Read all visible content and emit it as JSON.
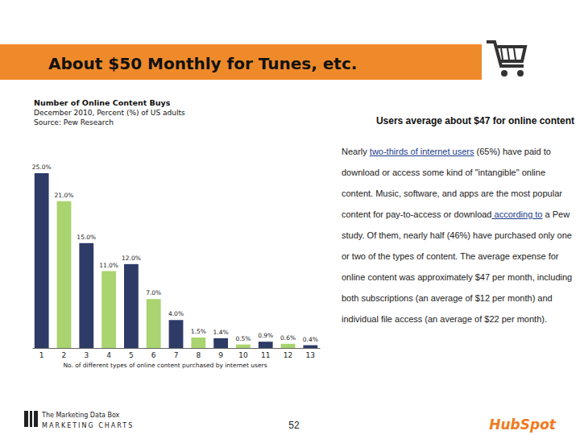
{
  "chart_data": {
    "type": "bar",
    "title": "Number of Online Content Buys",
    "subtitle": "December 2010, Percent (%) of US adults",
    "source": "Source: Pew Research",
    "xlabel": "No. of different types of online content purchased by internet users",
    "categories": [
      "1",
      "2",
      "3",
      "4",
      "5",
      "6",
      "7",
      "8",
      "9",
      "10",
      "11",
      "12",
      "13"
    ],
    "values": [
      25.0,
      21.0,
      15.0,
      11.0,
      12.0,
      7.0,
      4.0,
      1.5,
      1.4,
      0.5,
      0.9,
      0.6,
      0.4
    ],
    "value_labels": [
      "25.0%",
      "21.0%",
      "15.0%",
      "11.0%",
      "12.0%",
      "7.0%",
      "4.0%",
      "1.5%",
      "1.4%",
      "0.5%",
      "0.9%",
      "0.6%",
      "0.4%"
    ],
    "colors": [
      "#2e3b67",
      "#a9d46f",
      "#2e3b67",
      "#a9d46f",
      "#2e3b67",
      "#a9d46f",
      "#2e3b67",
      "#a9d46f",
      "#2e3b67",
      "#a9d46f",
      "#2e3b67",
      "#a9d46f",
      "#2e3b67"
    ],
    "ylim": [
      0,
      25
    ],
    "data_labels": true,
    "tick_labels": "x"
  },
  "page": {
    "title": "About $50 Monthly for Tunes, etc.",
    "headline": "Users average about $47 for online content",
    "paragraph": [
      {
        "text": "Nearly "
      },
      {
        "text": "two-thirds of internet users",
        "link": true
      },
      {
        "text": " (65%) have paid to download or access some kind of \"intangible\" online content. Music, software, and apps are the most popular content for pay-to-access or download"
      },
      {
        "text": " according to",
        "link": true
      },
      {
        "text": " a Pew study. Of them, nearly half (46%) have purchased only one or two of the types of content. The average expense for online content was approximately $47 per month, including both subscriptions (an average of $12 per month) and individual file access (an average of $22 per month)."
      }
    ],
    "logo_top": "The Marketing Data Box",
    "logo_bottom": "MARKETING CHARTS",
    "page_number": 52,
    "brand": "HubSpot"
  }
}
